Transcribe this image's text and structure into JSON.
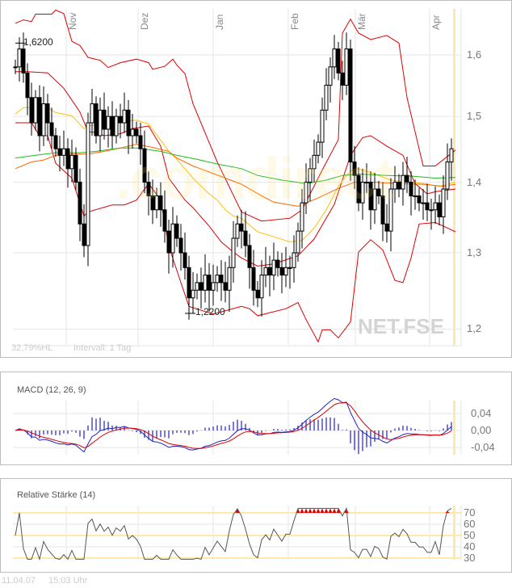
{
  "chart_data": [
    {
      "type": "candlestick",
      "symbol": "NET.FSE",
      "watermark": ".comdirect",
      "y_scale": "log",
      "ylim": [
        1.18,
        1.68
      ],
      "y_ticks": [
        "1,2",
        "1,3",
        "1,4",
        "1,5",
        "1,6"
      ],
      "y_tick_values": [
        1.2,
        1.3,
        1.4,
        1.5,
        1.6
      ],
      "month_ticks": [
        {
          "label": "Nov",
          "index": 12.6
        },
        {
          "label": "Dez",
          "index": 30.4
        },
        {
          "label": "Jan",
          "index": 49
        },
        {
          "label": "Feb",
          "index": 67.6
        },
        {
          "label": "Mär",
          "index": 84.2
        },
        {
          "label": "Apr",
          "index": 102.6
        }
      ],
      "high_label": {
        "text": "1,6200",
        "index": 1,
        "value": 1.62
      },
      "low_label": {
        "text": "1,2200",
        "index": 43,
        "value": 1.22
      },
      "closes": [
        1.58,
        1.61,
        1.57,
        1.53,
        1.49,
        1.53,
        1.47,
        1.52,
        1.49,
        1.47,
        1.45,
        1.44,
        1.45,
        1.42,
        1.44,
        1.4,
        1.34,
        1.31,
        1.49,
        1.52,
        1.47,
        1.51,
        1.48,
        1.5,
        1.47,
        1.5,
        1.49,
        1.51,
        1.47,
        1.48,
        1.47,
        1.45,
        1.4,
        1.38,
        1.36,
        1.38,
        1.36,
        1.33,
        1.3,
        1.34,
        1.32,
        1.3,
        1.28,
        1.24,
        1.25,
        1.26,
        1.25,
        1.27,
        1.25,
        1.26,
        1.27,
        1.26,
        1.25,
        1.28,
        1.32,
        1.34,
        1.33,
        1.31,
        1.28,
        1.25,
        1.24,
        1.27,
        1.28,
        1.27,
        1.29,
        1.28,
        1.27,
        1.28,
        1.28,
        1.3,
        1.33,
        1.37,
        1.4,
        1.42,
        1.44,
        1.46,
        1.51,
        1.55,
        1.58,
        1.61,
        1.57,
        1.55,
        1.61,
        1.43,
        1.41,
        1.37,
        1.4,
        1.4,
        1.36,
        1.39,
        1.38,
        1.34,
        1.33,
        1.39,
        1.4,
        1.39,
        1.41,
        1.4,
        1.38,
        1.38,
        1.37,
        1.37,
        1.36,
        1.36,
        1.37,
        1.35,
        1.39,
        1.43,
        1.45
      ],
      "lines": [
        {
          "role": "bollinger-upper",
          "color": "#dd0000",
          "points": [
            [
              0,
              1.654
            ],
            [
              2,
              1.66
            ],
            [
              4,
              1.657
            ],
            [
              5,
              1.67
            ],
            [
              9,
              1.67
            ],
            [
              10,
              1.677
            ],
            [
              12,
              1.671
            ],
            [
              14,
              1.623
            ],
            [
              16,
              1.616
            ],
            [
              18,
              1.596
            ],
            [
              21,
              1.591
            ],
            [
              23,
              1.579
            ],
            [
              26,
              1.587
            ],
            [
              30,
              1.593
            ],
            [
              33,
              1.587
            ],
            [
              34,
              1.576
            ],
            [
              37,
              1.581
            ],
            [
              39,
              1.593
            ],
            [
              40,
              1.583
            ],
            [
              42,
              1.569
            ],
            [
              44,
              1.52
            ],
            [
              50,
              1.43
            ],
            [
              56,
              1.357
            ],
            [
              61,
              1.344
            ],
            [
              68,
              1.348
            ],
            [
              71,
              1.36
            ],
            [
              76,
              1.418
            ],
            [
              80,
              1.464
            ],
            [
              81,
              1.637
            ],
            [
              83,
              1.661
            ],
            [
              85,
              1.637
            ],
            [
              88,
              1.626
            ],
            [
              92,
              1.633
            ],
            [
              95,
              1.62
            ],
            [
              97,
              1.53
            ],
            [
              101,
              1.424
            ],
            [
              104,
              1.424
            ],
            [
              109,
              1.448
            ]
          ]
        },
        {
          "role": "bollinger-middle",
          "color": "#dd0000",
          "points": [
            [
              0,
              1.572
            ],
            [
              3,
              1.572
            ],
            [
              8,
              1.57
            ],
            [
              12,
              1.545
            ],
            [
              16,
              1.507
            ],
            [
              18,
              1.476
            ],
            [
              20,
              1.475
            ],
            [
              22,
              1.47
            ],
            [
              26,
              1.473
            ],
            [
              29,
              1.481
            ],
            [
              33,
              1.485
            ],
            [
              36,
              1.454
            ],
            [
              38,
              1.406
            ],
            [
              42,
              1.374
            ],
            [
              44,
              1.363
            ],
            [
              48,
              1.337
            ],
            [
              51,
              1.315
            ],
            [
              54,
              1.301
            ],
            [
              56,
              1.293
            ],
            [
              60,
              1.282
            ],
            [
              64,
              1.285
            ],
            [
              70,
              1.296
            ],
            [
              74,
              1.319
            ],
            [
              79,
              1.368
            ],
            [
              83,
              1.44
            ],
            [
              86,
              1.467
            ],
            [
              88,
              1.47
            ],
            [
              92,
              1.454
            ],
            [
              96,
              1.44
            ],
            [
              99,
              1.398
            ],
            [
              102,
              1.383
            ],
            [
              104,
              1.386
            ],
            [
              109,
              1.39
            ]
          ]
        },
        {
          "role": "bollinger-lower",
          "color": "#dd0000",
          "points": [
            [
              0,
              1.49
            ],
            [
              4,
              1.49
            ],
            [
              6,
              1.47
            ],
            [
              8,
              1.47
            ],
            [
              10,
              1.428
            ],
            [
              14,
              1.406
            ],
            [
              17,
              1.351
            ],
            [
              18,
              1.357
            ],
            [
              24,
              1.367
            ],
            [
              27,
              1.367
            ],
            [
              30,
              1.374
            ],
            [
              33,
              1.398
            ],
            [
              36,
              1.374
            ],
            [
              38,
              1.309
            ],
            [
              41,
              1.26
            ],
            [
              43,
              1.229
            ],
            [
              49,
              1.219
            ],
            [
              56,
              1.229
            ],
            [
              58,
              1.226
            ],
            [
              60,
              1.217
            ],
            [
              67,
              1.226
            ],
            [
              70,
              1.234
            ],
            [
              72,
              1.212
            ],
            [
              75,
              1.184
            ],
            [
              76,
              1.199
            ],
            [
              78,
              1.199
            ],
            [
              80,
              1.189
            ],
            [
              83,
              1.209
            ],
            [
              85,
              1.301
            ],
            [
              88,
              1.318
            ],
            [
              91,
              1.304
            ],
            [
              94,
              1.263
            ],
            [
              96,
              1.26
            ],
            [
              98,
              1.293
            ],
            [
              100,
              1.34
            ],
            [
              104,
              1.342
            ],
            [
              106,
              1.337
            ],
            [
              109,
              1.329
            ]
          ]
        },
        {
          "role": "moving-average-short",
          "color": "#ffc000",
          "points": [
            [
              0,
              1.504
            ],
            [
              2,
              1.514
            ],
            [
              8,
              1.514
            ],
            [
              10,
              1.506
            ],
            [
              14,
              1.501
            ],
            [
              17,
              1.481
            ],
            [
              18,
              1.485
            ],
            [
              22,
              1.488
            ],
            [
              26,
              1.492
            ],
            [
              30,
              1.494
            ],
            [
              33,
              1.488
            ],
            [
              36,
              1.463
            ],
            [
              38,
              1.446
            ],
            [
              40,
              1.434
            ],
            [
              44,
              1.406
            ],
            [
              46,
              1.394
            ],
            [
              48,
              1.383
            ],
            [
              50,
              1.374
            ],
            [
              52,
              1.36
            ],
            [
              54,
              1.351
            ],
            [
              56,
              1.348
            ],
            [
              60,
              1.329
            ],
            [
              64,
              1.322
            ],
            [
              68,
              1.315
            ],
            [
              71,
              1.317
            ],
            [
              74,
              1.334
            ],
            [
              77,
              1.36
            ],
            [
              80,
              1.394
            ],
            [
              82,
              1.41
            ],
            [
              84,
              1.421
            ],
            [
              86,
              1.418
            ],
            [
              89,
              1.412
            ],
            [
              93,
              1.403
            ],
            [
              98,
              1.4
            ],
            [
              101,
              1.398
            ],
            [
              105,
              1.394
            ],
            [
              109,
              1.4
            ]
          ]
        },
        {
          "role": "moving-average-medium",
          "color": "#ff6600",
          "points": [
            [
              0,
              1.42
            ],
            [
              4,
              1.43
            ],
            [
              7,
              1.433
            ],
            [
              10,
              1.44
            ],
            [
              14,
              1.442
            ],
            [
              18,
              1.442
            ],
            [
              22,
              1.446
            ],
            [
              26,
              1.451
            ],
            [
              30,
              1.457
            ],
            [
              34,
              1.452
            ],
            [
              38,
              1.446
            ],
            [
              40,
              1.436
            ],
            [
              44,
              1.424
            ],
            [
              48,
              1.415
            ],
            [
              52,
              1.406
            ],
            [
              56,
              1.397
            ],
            [
              61,
              1.38
            ],
            [
              64,
              1.371
            ],
            [
              70,
              1.365
            ],
            [
              75,
              1.377
            ],
            [
              80,
              1.391
            ],
            [
              84,
              1.4
            ],
            [
              89,
              1.4
            ],
            [
              94,
              1.398
            ],
            [
              101,
              1.397
            ],
            [
              106,
              1.394
            ],
            [
              109,
              1.397
            ]
          ]
        },
        {
          "role": "moving-average-long",
          "color": "#22bb22",
          "points": [
            [
              0,
              1.436
            ],
            [
              5,
              1.44
            ],
            [
              10,
              1.444
            ],
            [
              16,
              1.444
            ],
            [
              20,
              1.446
            ],
            [
              26,
              1.451
            ],
            [
              30,
              1.451
            ],
            [
              36,
              1.446
            ],
            [
              40,
              1.44
            ],
            [
              45,
              1.434
            ],
            [
              50,
              1.427
            ],
            [
              56,
              1.42
            ],
            [
              60,
              1.41
            ],
            [
              66,
              1.403
            ],
            [
              72,
              1.398
            ],
            [
              77,
              1.403
            ],
            [
              81,
              1.41
            ],
            [
              85,
              1.412
            ],
            [
              92,
              1.41
            ],
            [
              98,
              1.409
            ],
            [
              104,
              1.406
            ],
            [
              109,
              1.407
            ]
          ]
        }
      ],
      "colors": {
        "candle": "#000000",
        "grid": "#e6e6e6",
        "today_marker": "#ffe9a8"
      }
    },
    {
      "type": "macd",
      "title": "MACD (12, 26, 9)",
      "y_ticks": [
        "0,04",
        "0,00",
        "-0,04"
      ],
      "y_tick_values": [
        0.04,
        0,
        -0.04
      ],
      "colors": {
        "macd": "#2222bb",
        "signal": "#dd0000",
        "histogram": "#2222bb"
      }
    },
    {
      "type": "line",
      "title": "Relative Stärke (14)",
      "ylim": [
        28,
        76
      ],
      "y_ticks": [
        "70",
        "60",
        "50",
        "40",
        "30"
      ],
      "y_tick_values": [
        70,
        60,
        50,
        40,
        30
      ],
      "reference_lines": [
        70,
        50,
        30
      ],
      "colors": {
        "line": "#555555",
        "overbought": "#dd0000",
        "reference": "#ffe9a8"
      }
    }
  ],
  "info": {
    "hl": "32,79%HL",
    "interval": "Intervall: 1 Tag"
  },
  "footer": {
    "date": "11.04.07",
    "time": "15:03 Uhr"
  }
}
